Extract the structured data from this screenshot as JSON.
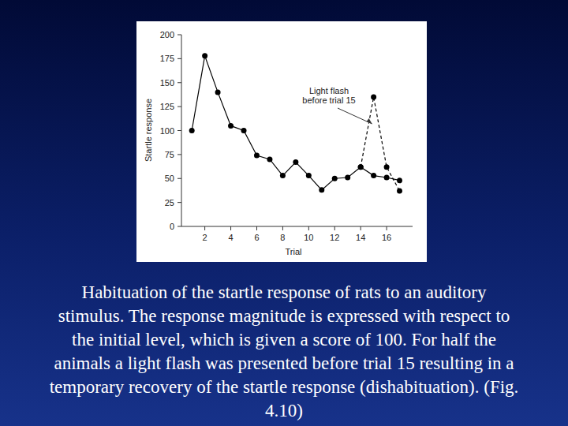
{
  "chart_data": {
    "type": "line",
    "y_label": "Startle response",
    "x_label": "Trial",
    "x": [
      1,
      2,
      3,
      4,
      5,
      6,
      7,
      8,
      9,
      10,
      11,
      12,
      13,
      14,
      15,
      16,
      17
    ],
    "series": [
      {
        "color": "#000000",
        "line_style": "solid",
        "marker": "circle",
        "values": [
          100,
          178,
          140,
          105,
          100,
          74,
          70,
          53,
          67,
          53,
          38,
          50,
          51,
          62,
          53,
          51,
          48
        ]
      },
      {
        "color": "#000000",
        "line_style": "dashed",
        "marker": "circle",
        "values": [
          null,
          null,
          null,
          null,
          null,
          null,
          null,
          null,
          null,
          null,
          null,
          null,
          null,
          62,
          135,
          62,
          37
        ]
      }
    ],
    "xlim": [
      0.2,
      18
    ],
    "xticks": [
      2,
      4,
      6,
      8,
      10,
      12,
      14,
      16
    ],
    "ylim": [
      0,
      200
    ],
    "yticks": [
      0,
      25,
      50,
      75,
      100,
      125,
      150,
      175,
      200
    ],
    "grid": false,
    "annotation": {
      "lines": [
        "Light flash",
        "before trial 15"
      ],
      "x": 15,
      "y": 135
    }
  },
  "slide": {
    "caption_lines": [
      "Habituation of the startle response of rats to an auditory",
      "stimulus. The response magnitude is expressed with respect to",
      "the initial level, which is given a score of 100. For half the",
      "animals a light flash was presented before trial 15 resulting in a",
      "temporary recovery of the startle response (dishabituation). (Fig.",
      "4.10)"
    ]
  }
}
